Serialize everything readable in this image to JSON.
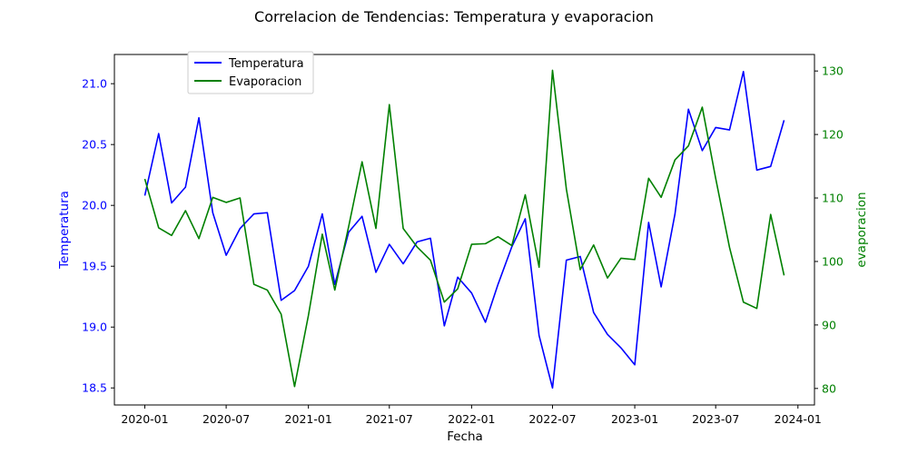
{
  "chart_data": {
    "type": "line",
    "title": "Correlacion de Tendencias: Temperatura y evaporacion",
    "xlabel": "Fecha",
    "ylabel_left": "Temperatura",
    "ylabel_right": "evaporacion",
    "x_ticks": [
      "2020-01",
      "2020-07",
      "2021-01",
      "2021-07",
      "2022-01",
      "2022-07",
      "2023-01",
      "2023-07",
      "2024-01"
    ],
    "y_left_ticks": [
      "18.5",
      "19.0",
      "19.5",
      "20.0",
      "20.5",
      "21.0"
    ],
    "y_right_ticks": [
      "80",
      "90",
      "100",
      "110",
      "120",
      "130"
    ],
    "ylim_left": [
      18.36,
      21.24
    ],
    "ylim_right": [
      77.4,
      132.6
    ],
    "xlim": [
      "2019-10-25",
      "2024-02-07"
    ],
    "grid": false,
    "legend": "top-left",
    "x": [
      "2020-01",
      "2020-02",
      "2020-03",
      "2020-04",
      "2020-05",
      "2020-06",
      "2020-07",
      "2020-08",
      "2020-09",
      "2020-10",
      "2020-11",
      "2020-12",
      "2021-01",
      "2021-02",
      "2021-03",
      "2021-04",
      "2021-05",
      "2021-06",
      "2021-07",
      "2021-08",
      "2021-09",
      "2021-10",
      "2021-11",
      "2021-12",
      "2022-01",
      "2022-02",
      "2022-03",
      "2022-04",
      "2022-05",
      "2022-06",
      "2022-07",
      "2022-08",
      "2022-09",
      "2022-10",
      "2022-11",
      "2022-12",
      "2023-01",
      "2023-02",
      "2023-03",
      "2023-04",
      "2023-05",
      "2023-06",
      "2023-07",
      "2023-08",
      "2023-09",
      "2023-10",
      "2023-11",
      "2023-12"
    ],
    "series": [
      {
        "name": "Temperatura",
        "axis": "left",
        "color": "#0000ff",
        "values": [
          20.08,
          20.59,
          20.02,
          20.15,
          20.72,
          19.94,
          19.59,
          19.81,
          19.93,
          19.94,
          19.22,
          19.3,
          19.5,
          19.93,
          19.35,
          19.78,
          19.91,
          19.45,
          19.68,
          19.52,
          19.7,
          19.73,
          19.01,
          19.41,
          19.28,
          19.04,
          19.35,
          19.66,
          19.89,
          18.93,
          18.5,
          19.55,
          19.58,
          19.12,
          18.94,
          18.83,
          18.69,
          19.86,
          19.33,
          19.93,
          20.79,
          20.45,
          20.64,
          20.62,
          21.1,
          20.29,
          20.32,
          20.7
        ]
      },
      {
        "name": "Evaporacion",
        "axis": "right",
        "color": "#008000",
        "values": [
          113.0,
          105.3,
          104.1,
          108.0,
          103.6,
          110.1,
          109.3,
          110.0,
          96.4,
          95.5,
          91.7,
          80.3,
          91.5,
          104.3,
          95.5,
          105.5,
          115.7,
          105.2,
          124.7,
          105.2,
          102.3,
          100.2,
          93.6,
          95.7,
          102.7,
          102.8,
          103.9,
          102.5,
          110.5,
          99.1,
          130.1,
          111.4,
          98.7,
          102.6,
          97.4,
          100.5,
          100.3,
          113.1,
          110.1,
          116.0,
          118.2,
          124.3,
          113.1,
          102.2,
          93.6,
          92.6,
          107.4,
          97.8
        ]
      }
    ]
  }
}
